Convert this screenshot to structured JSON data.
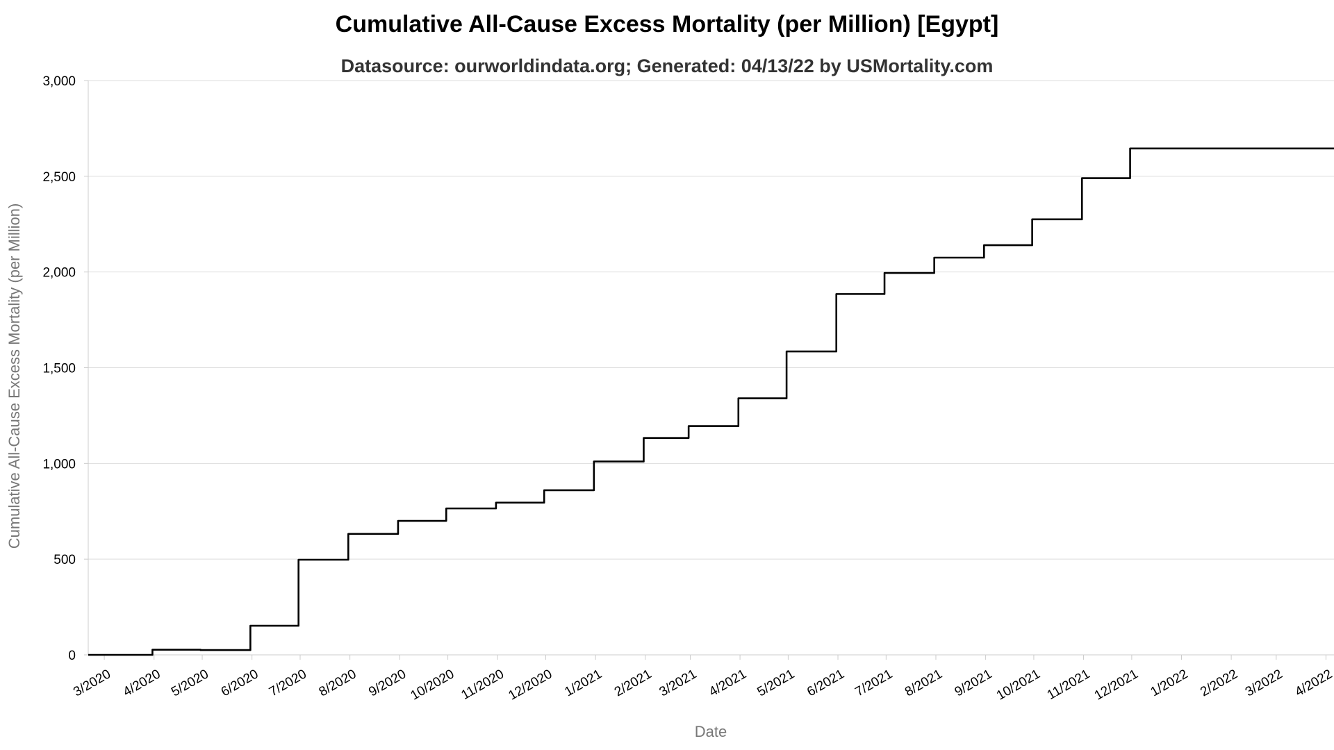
{
  "chart_data": {
    "type": "line",
    "title": "Cumulative All-Cause Excess Mortality (per Million) [Egypt]",
    "subtitle": "Datasource: ourworldindata.org; Generated: 04/13/22 by USMortality.com",
    "xlabel": "Date",
    "ylabel": "Cumulative All-Cause Excess Mortality (per Million)",
    "ylim": [
      0,
      3000
    ],
    "xlim": [
      "2020-02-20",
      "2022-04-06"
    ],
    "grid": true,
    "line_style": "step-after",
    "colors": {
      "line": "#000000",
      "grid": "#dddddd",
      "axis": "#cccccc"
    },
    "y_ticks": [
      {
        "value": 0,
        "label": "0"
      },
      {
        "value": 500,
        "label": "500"
      },
      {
        "value": 1000,
        "label": "1,000"
      },
      {
        "value": 1500,
        "label": "1,500"
      },
      {
        "value": 2000,
        "label": "2,000"
      },
      {
        "value": 2500,
        "label": "2,500"
      },
      {
        "value": 3000,
        "label": "3,000"
      }
    ],
    "x_ticks": [
      {
        "date": "2020-03-01",
        "label": "3/2020"
      },
      {
        "date": "2020-04-01",
        "label": "4/2020"
      },
      {
        "date": "2020-05-01",
        "label": "5/2020"
      },
      {
        "date": "2020-06-01",
        "label": "6/2020"
      },
      {
        "date": "2020-07-01",
        "label": "7/2020"
      },
      {
        "date": "2020-08-01",
        "label": "8/2020"
      },
      {
        "date": "2020-09-01",
        "label": "9/2020"
      },
      {
        "date": "2020-10-01",
        "label": "10/2020"
      },
      {
        "date": "2020-11-01",
        "label": "11/2020"
      },
      {
        "date": "2020-12-01",
        "label": "12/2020"
      },
      {
        "date": "2021-01-01",
        "label": "1/2021"
      },
      {
        "date": "2021-02-01",
        "label": "2/2021"
      },
      {
        "date": "2021-03-01",
        "label": "3/2021"
      },
      {
        "date": "2021-04-01",
        "label": "4/2021"
      },
      {
        "date": "2021-05-01",
        "label": "5/2021"
      },
      {
        "date": "2021-06-01",
        "label": "6/2021"
      },
      {
        "date": "2021-07-01",
        "label": "7/2021"
      },
      {
        "date": "2021-08-01",
        "label": "8/2021"
      },
      {
        "date": "2021-09-01",
        "label": "9/2021"
      },
      {
        "date": "2021-10-01",
        "label": "10/2021"
      },
      {
        "date": "2021-11-01",
        "label": "11/2021"
      },
      {
        "date": "2021-12-01",
        "label": "12/2021"
      },
      {
        "date": "2022-01-01",
        "label": "1/2022"
      },
      {
        "date": "2022-02-01",
        "label": "2/2022"
      },
      {
        "date": "2022-03-01",
        "label": "3/2022"
      },
      {
        "date": "2022-04-01",
        "label": "4/2022"
      }
    ],
    "series": [
      {
        "points": [
          {
            "x": "2020-02-20",
            "y": 0
          },
          {
            "x": "2020-03-31",
            "y": 27
          },
          {
            "x": "2020-04-30",
            "y": 25
          },
          {
            "x": "2020-05-31",
            "y": 152
          },
          {
            "x": "2020-06-30",
            "y": 497
          },
          {
            "x": "2020-07-31",
            "y": 632
          },
          {
            "x": "2020-08-31",
            "y": 700
          },
          {
            "x": "2020-09-30",
            "y": 765
          },
          {
            "x": "2020-10-31",
            "y": 795
          },
          {
            "x": "2020-11-30",
            "y": 860
          },
          {
            "x": "2020-12-31",
            "y": 1010
          },
          {
            "x": "2021-01-31",
            "y": 1133
          },
          {
            "x": "2021-02-28",
            "y": 1195
          },
          {
            "x": "2021-03-31",
            "y": 1340
          },
          {
            "x": "2021-04-30",
            "y": 1585
          },
          {
            "x": "2021-05-31",
            "y": 1885
          },
          {
            "x": "2021-06-30",
            "y": 1995
          },
          {
            "x": "2021-07-31",
            "y": 2075
          },
          {
            "x": "2021-08-31",
            "y": 2140
          },
          {
            "x": "2021-09-30",
            "y": 2275
          },
          {
            "x": "2021-10-31",
            "y": 2490
          },
          {
            "x": "2021-11-30",
            "y": 2645
          },
          {
            "x": "2022-04-06",
            "y": 2645
          }
        ]
      }
    ]
  }
}
